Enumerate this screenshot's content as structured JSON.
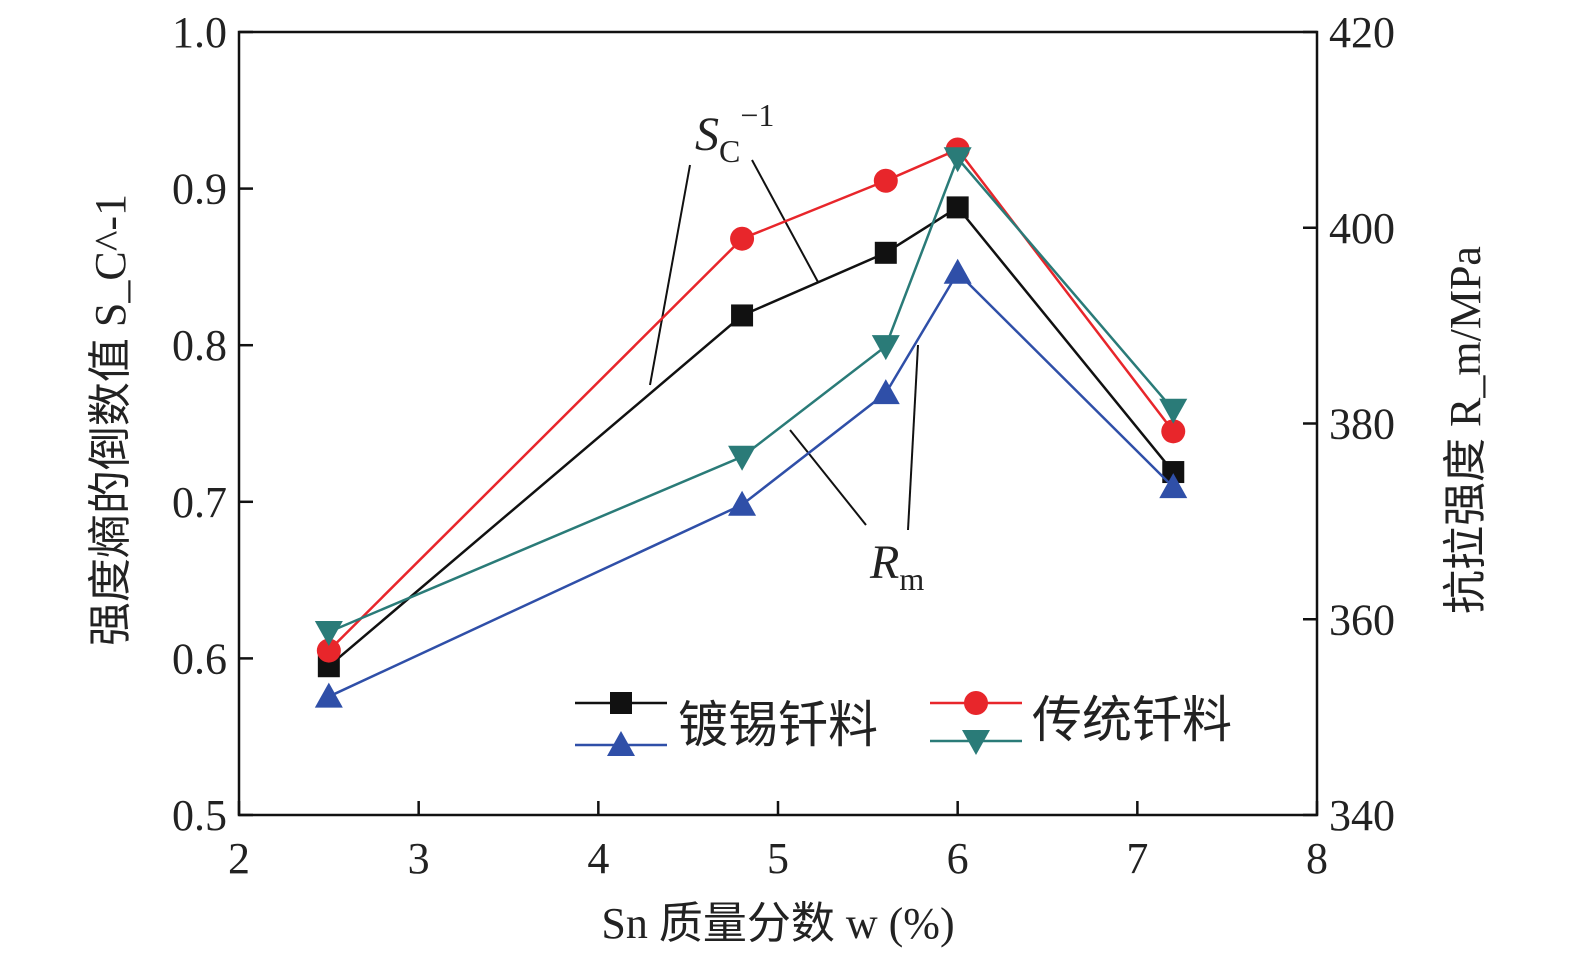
{
  "chart_data": {
    "type": "line",
    "xlabel": "Sn 质量分数 w (%)",
    "ylabel_left": "强度熵的倒数值 S_C^-1",
    "ylabel_right": "抗拉强度 R_m/MPa",
    "xlim": [
      2,
      8
    ],
    "ylim_left": [
      0.5,
      1.0
    ],
    "ylim_right": [
      340,
      420
    ],
    "x_ticks": [
      "2",
      "3",
      "4",
      "5",
      "6",
      "7",
      "8"
    ],
    "y_ticks_left": [
      "0.5",
      "0.6",
      "0.7",
      "0.8",
      "0.9",
      "1.0"
    ],
    "y_ticks_right": [
      "340",
      "360",
      "380",
      "400",
      "420"
    ],
    "x": [
      2.5,
      4.8,
      5.6,
      6.0,
      7.2
    ],
    "series": [
      {
        "name": "镀锡钎料 S_C^-1",
        "axis": "left",
        "marker": "square",
        "color": "#111111",
        "values": [
          0.595,
          0.819,
          0.859,
          0.888,
          0.719
        ]
      },
      {
        "name": "传统钎料 S_C^-1",
        "axis": "left",
        "marker": "circle",
        "color": "#e8262b",
        "values": [
          0.605,
          0.868,
          0.905,
          0.925,
          0.745
        ]
      },
      {
        "name": "镀锡钎料 R_m",
        "axis": "right",
        "marker": "triangle-up",
        "color": "#2f4fa8",
        "values": [
          352.1,
          371.7,
          383.1,
          395.4,
          373.5
        ]
      },
      {
        "name": "传统钎料 R_m",
        "axis": "right",
        "marker": "triangle-down",
        "color": "#2a7b78",
        "values": [
          358.7,
          376.6,
          387.9,
          407.1,
          381.4
        ]
      }
    ],
    "legend": {
      "placement": "bottom-right",
      "label_tin": "镀锡钎料",
      "label_trad": "传统钎料"
    },
    "annotations": {
      "sc_label": "S",
      "sc_sub": "C",
      "sc_sup": "−1",
      "rm_label": "R",
      "rm_sub": "m"
    },
    "grid": false
  }
}
